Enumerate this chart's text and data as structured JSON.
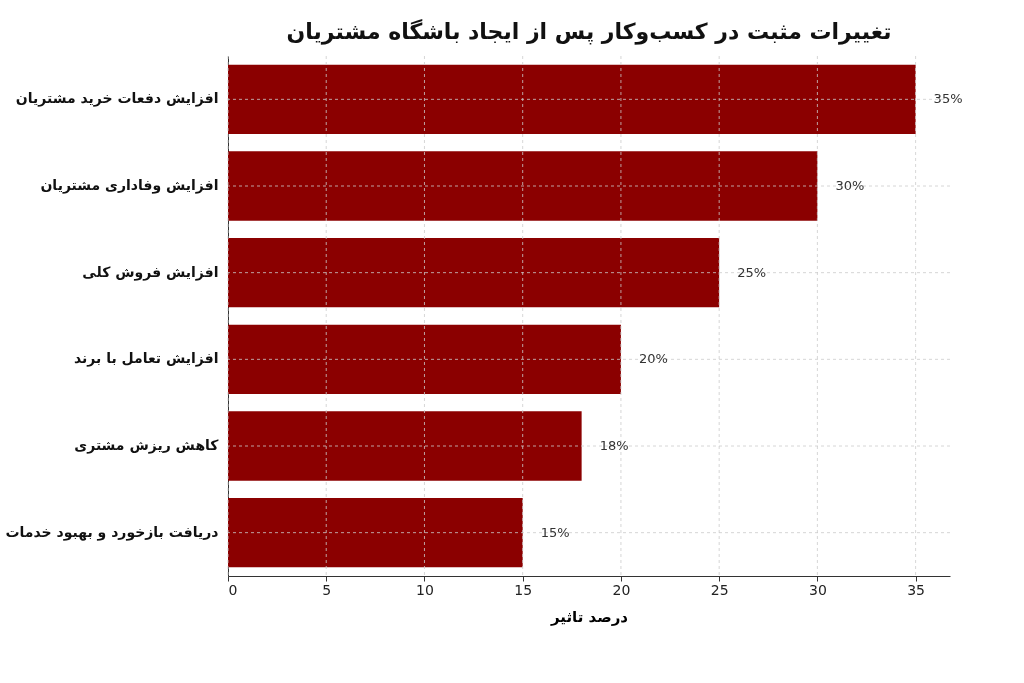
{
  "chart_data": {
    "type": "bar",
    "orientation": "horizontal",
    "title": "تغییرات مثبت در کسب‌وکار پس از ایجاد باشگاه مشتریان",
    "xlabel": "درصد تاثیر",
    "categories": [
      "افزایش دفعات خرید مشتریان",
      "افزایش وفاداری مشتریان",
      "افزایش فروش کلی",
      "افزایش تعامل با برند",
      "کاهش ریزش مشتری",
      "دریافت بازخورد و بهبود خدمات"
    ],
    "values": [
      35,
      30,
      25,
      20,
      18,
      15
    ],
    "value_labels": [
      "35%",
      "30%",
      "25%",
      "20%",
      "18%",
      "15%"
    ],
    "color": "#8b0000",
    "xlim": [
      0,
      36.75
    ],
    "xticks": [
      0,
      5,
      10,
      15,
      20,
      25,
      30,
      35
    ],
    "grid": true
  }
}
